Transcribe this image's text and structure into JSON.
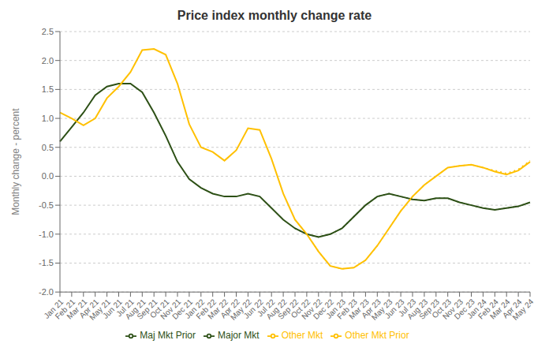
{
  "chart_data": {
    "type": "line",
    "title": "Price index monthly  change rate",
    "y_label": "Monthly change - percent",
    "categories": [
      "Jan 21",
      "Feb 21",
      "Mar 21",
      "Apr 21",
      "May 21",
      "Jun 21",
      "Jul 21",
      "Aug 21",
      "Sep 21",
      "Oct 21",
      "Nov 21",
      "Dec 21",
      "Jan 22",
      "Feb 22",
      "Mar 22",
      "Apr 22",
      "May 22",
      "Jun 22",
      "Jul 22",
      "Aug 22",
      "Sep 22",
      "Oct 22",
      "Nov 22",
      "Dec 22",
      "Jan 23",
      "Feb 23",
      "Mar 23",
      "Apr 23",
      "May 23",
      "Jun 23",
      "Jul 23",
      "Aug 23",
      "Sep 23",
      "Oct 23",
      "Nov 23",
      "Dec 23",
      "Jan 24",
      "Feb 24",
      "Mar 24",
      "Apr 24",
      "May 24"
    ],
    "series": [
      {
        "name": "Major Mkt",
        "color": "#2d5016",
        "line_style": "solid",
        "values": [
          0.6,
          0.85,
          1.1,
          1.4,
          1.55,
          1.6,
          1.6,
          1.45,
          1.1,
          0.7,
          0.25,
          -0.05,
          -0.2,
          -0.3,
          -0.35,
          -0.35,
          -0.3,
          -0.35,
          -0.55,
          -0.75,
          -0.9,
          -1.0,
          -1.05,
          -1.0,
          -0.9,
          -0.7,
          -0.5,
          -0.35,
          -0.3,
          -0.35,
          -0.4,
          -0.42,
          -0.38,
          -0.38,
          -0.45,
          -0.5,
          -0.55,
          -0.58,
          -0.55,
          -0.52,
          -0.45
        ]
      },
      {
        "name": "Other Mkt",
        "color": "#ffc000",
        "line_style": "solid",
        "values": [
          1.1,
          1.0,
          0.88,
          1.0,
          1.35,
          1.55,
          1.8,
          2.18,
          2.2,
          2.1,
          1.6,
          0.9,
          0.5,
          0.42,
          0.27,
          0.45,
          0.83,
          0.8,
          0.3,
          -0.3,
          -0.75,
          -1.0,
          -1.3,
          -1.55,
          -1.6,
          -1.58,
          -1.45,
          -1.2,
          -0.9,
          -0.6,
          -0.35,
          -0.15,
          0.0,
          0.15,
          0.18,
          0.2,
          0.15,
          0.08,
          0.03,
          0.1,
          0.25
        ]
      },
      {
        "name": "Maj Mkt Prior",
        "color": "#2d5016",
        "line_style": "dotted",
        "values": [
          null,
          null,
          null,
          null,
          null,
          null,
          null,
          null,
          null,
          null,
          null,
          null,
          null,
          null,
          null,
          null,
          null,
          null,
          null,
          null,
          -0.9,
          -1.0,
          -1.05,
          -1.0,
          -0.9,
          -0.7,
          -0.5,
          -0.35,
          -0.3,
          -0.35,
          -0.4,
          -0.42,
          -0.38,
          -0.38,
          -0.45,
          -0.5,
          -0.55,
          -0.58,
          -0.55,
          -0.52,
          -0.45
        ]
      },
      {
        "name": "Other Mkt Prior",
        "color": "#ffc000",
        "line_style": "dotted",
        "values": [
          null,
          null,
          null,
          null,
          null,
          null,
          null,
          null,
          null,
          null,
          null,
          null,
          null,
          null,
          null,
          null,
          null,
          null,
          null,
          null,
          -0.75,
          -1.0,
          -1.3,
          -1.55,
          -1.6,
          -1.58,
          -1.45,
          -1.2,
          -0.9,
          -0.6,
          -0.35,
          -0.15,
          0.0,
          0.15,
          0.18,
          0.2,
          0.15,
          0.1,
          0.05,
          0.12,
          0.27
        ]
      }
    ],
    "ylim": [
      -2.0,
      2.5
    ],
    "yticks": [
      {
        "value": -2.0,
        "label": "-2.0"
      },
      {
        "value": -1.5,
        "label": "-1.5"
      },
      {
        "value": -1.0,
        "label": "-1.0"
      },
      {
        "value": -0.5,
        "label": "-0.5"
      },
      {
        "value": 0.0,
        "label": "0.0"
      },
      {
        "value": 0.5,
        "label": "0.5"
      },
      {
        "value": 1.0,
        "label": "1.0"
      },
      {
        "value": 1.5,
        "label": "1.5"
      },
      {
        "value": 2.0,
        "label": "2.0"
      },
      {
        "value": 2.5,
        "label": "2.5"
      }
    ],
    "grid": true,
    "legend": "bottom"
  }
}
